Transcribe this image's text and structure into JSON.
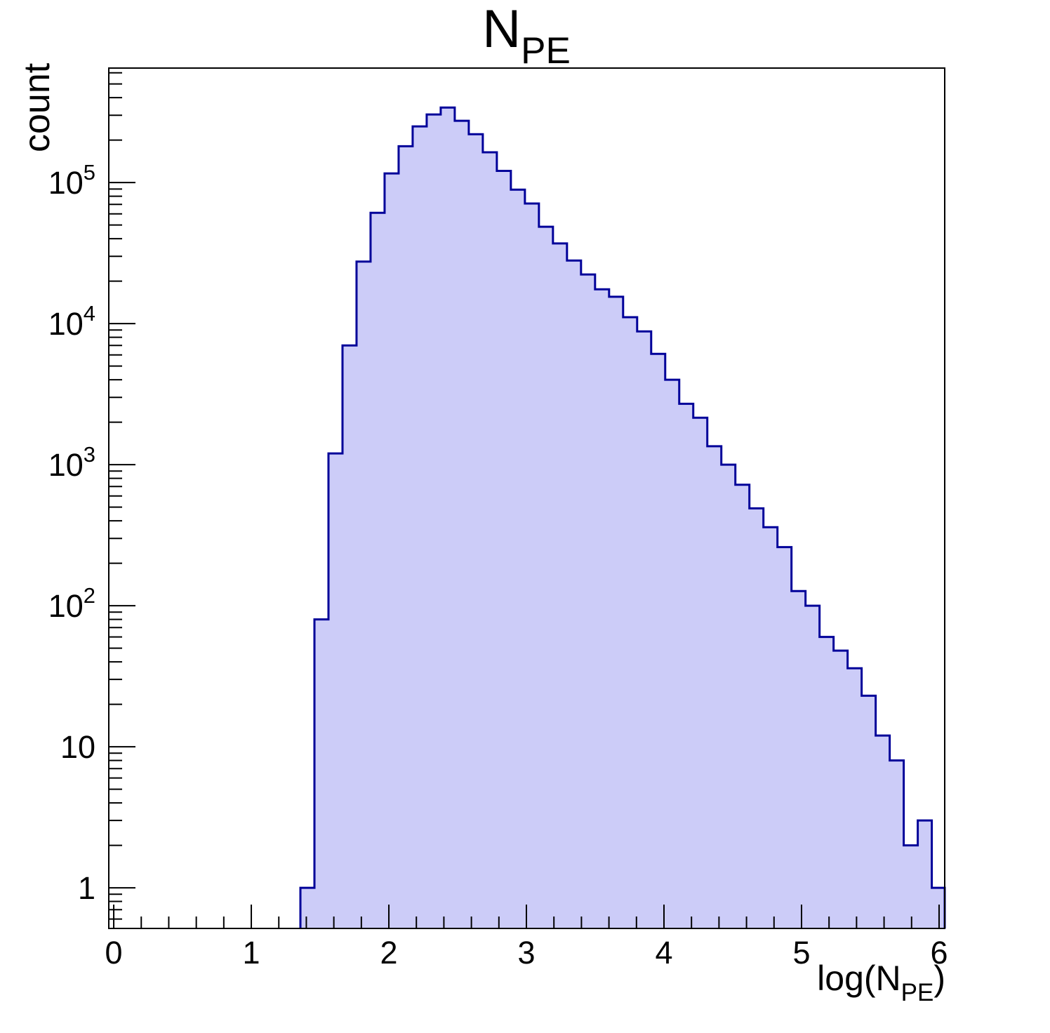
{
  "page": {
    "background": "#ffffff"
  },
  "chart_data": {
    "type": "bar",
    "subtype": "step-histogram-log-y",
    "title": {
      "main": "N",
      "subscript": "PE"
    },
    "ylabel": "count",
    "xlabel": {
      "prefix": "log(N",
      "subscript": "PE",
      "suffix": ")"
    },
    "x_axis": {
      "scale": "linear",
      "min": -0.036,
      "max": 6.041,
      "major_ticks": [
        0,
        1,
        2,
        3,
        4,
        5,
        6
      ],
      "major_tick_labels": [
        "0",
        "1",
        "2",
        "3",
        "4",
        "5",
        "6"
      ],
      "minor_tick_step": 0.2
    },
    "y_axis": {
      "scale": "log",
      "min": 0.515,
      "max": 648000,
      "major_ticks": [
        1,
        10,
        100,
        1000,
        10000,
        100000
      ],
      "major_tick_labels": [
        {
          "base": "1",
          "exp": ""
        },
        {
          "base": "10",
          "exp": ""
        },
        {
          "base": "10",
          "exp": "2"
        },
        {
          "base": "10",
          "exp": "3"
        },
        {
          "base": "10",
          "exp": "4"
        },
        {
          "base": "10",
          "exp": "5"
        }
      ]
    },
    "bins": {
      "start": 1.357,
      "width": 0.102,
      "counts": [
        1,
        80,
        1200,
        7000,
        27500,
        61000,
        116000,
        181000,
        250000,
        304000,
        340000,
        274000,
        220000,
        164000,
        121000,
        89000,
        71000,
        48600,
        37000,
        28000,
        22300,
        17500,
        15500,
        11100,
        8800,
        6100,
        4000,
        2700,
        2150,
        1350,
        1000,
        720,
        490,
        360,
        260,
        127,
        100,
        60,
        48,
        36,
        23,
        12,
        8,
        2,
        3,
        1
      ]
    },
    "style": {
      "fill_color": "#ccccf8",
      "line_color": "#000099",
      "axis_color": "#000000",
      "hist_line_width": 3,
      "frame_line_width": 2,
      "legend": "none",
      "grid": "off"
    }
  }
}
